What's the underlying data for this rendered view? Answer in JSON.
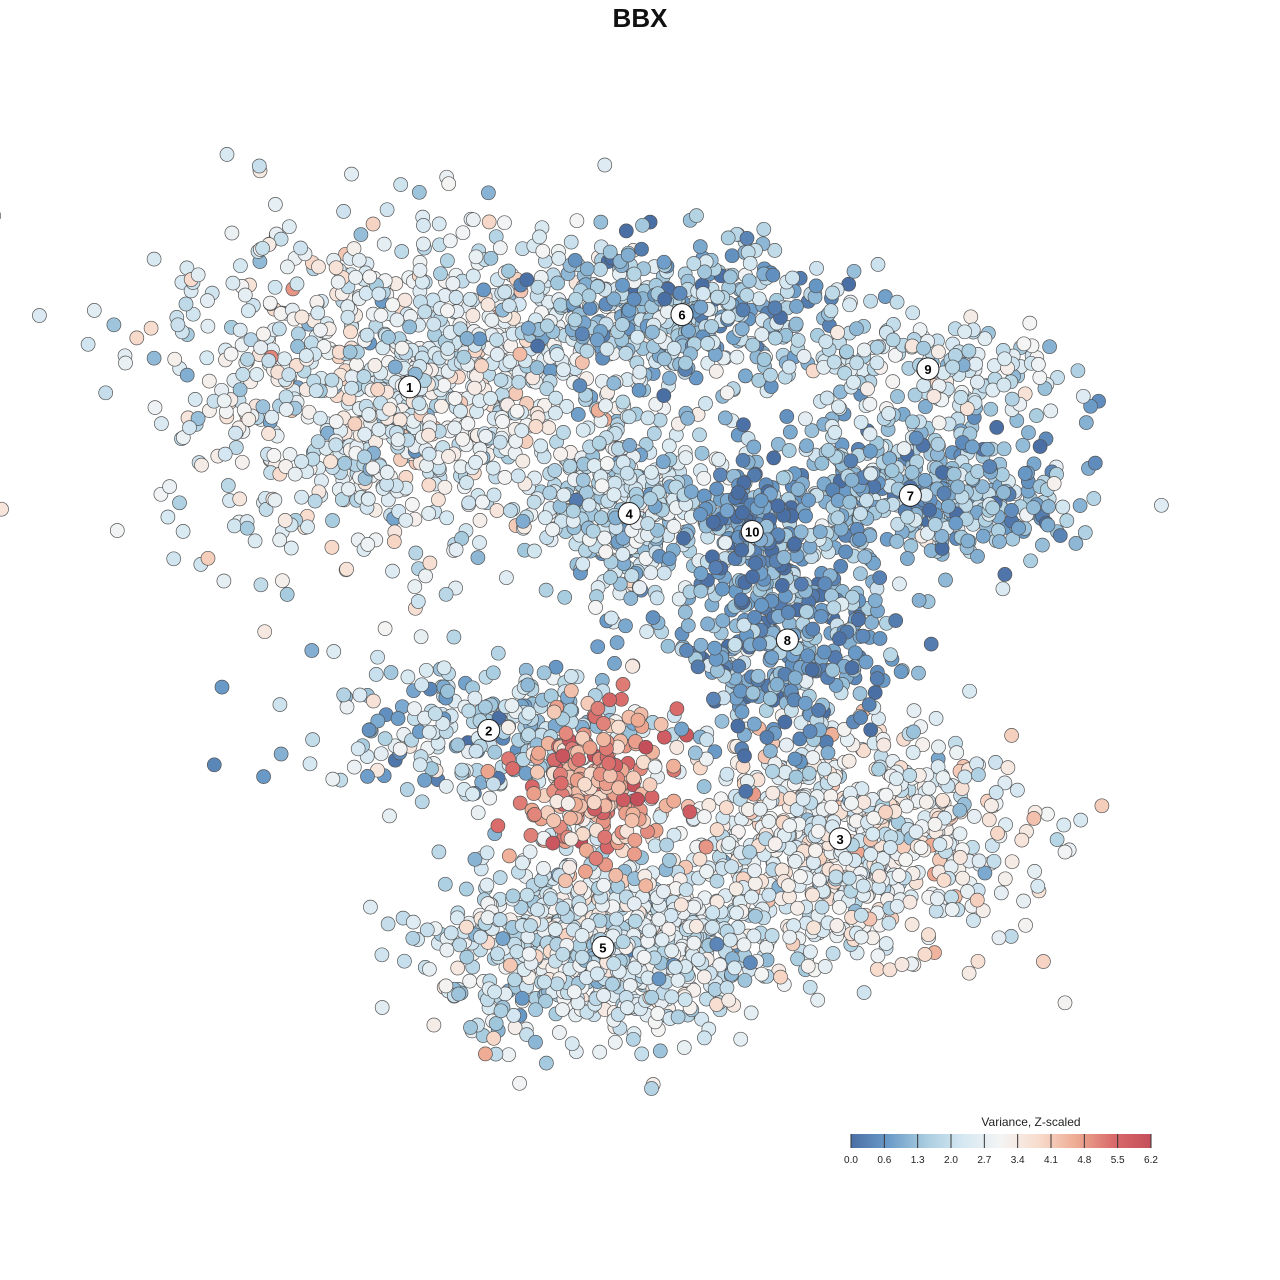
{
  "chart_data": {
    "type": "scatter",
    "title": "BBX",
    "xlabel": "",
    "ylabel": "",
    "grid": false,
    "axes_visible": false,
    "legend": {
      "title": "Variance, Z-scaled",
      "placement": "bottom-right",
      "ticks": [
        "0.0",
        "0.6",
        "1.3",
        "2.0",
        "2.7",
        "3.4",
        "4.1",
        "4.8",
        "5.5",
        "6.2"
      ],
      "range": [
        0.0,
        6.2
      ],
      "colors": [
        "#4a6fa5",
        "#6a9bc8",
        "#a9cde0",
        "#d6e8f2",
        "#f4f4f4",
        "#f8dccd",
        "#eeab93",
        "#d96a6a",
        "#c44e5a"
      ]
    },
    "clusters": [
      {
        "label": "1",
        "center": [
          -30,
          28
        ],
        "spread": [
          14,
          9
        ],
        "n": 1100,
        "mean": 2.6
      },
      {
        "label": "2",
        "center": [
          -21,
          -10
        ],
        "spread": [
          10,
          4
        ],
        "n": 260,
        "mean": 1.8
      },
      {
        "label": "3",
        "center": [
          19,
          -22
        ],
        "spread": [
          10,
          6
        ],
        "n": 750,
        "mean": 2.9
      },
      {
        "label": "4",
        "center": [
          -5,
          14
        ],
        "spread": [
          5,
          5
        ],
        "n": 330,
        "mean": 2.0
      },
      {
        "label": "5",
        "center": [
          -8,
          -34
        ],
        "spread": [
          9,
          5
        ],
        "n": 850,
        "mean": 2.4
      },
      {
        "label": "6",
        "center": [
          1,
          36
        ],
        "spread": [
          9,
          4
        ],
        "n": 420,
        "mean": 1.5
      },
      {
        "label": "7",
        "center": [
          27,
          16
        ],
        "spread": [
          10,
          4
        ],
        "n": 480,
        "mean": 1.3
      },
      {
        "label": "8",
        "center": [
          13,
          0
        ],
        "spread": [
          6,
          6
        ],
        "n": 380,
        "mean": 1.0
      },
      {
        "label": "9",
        "center": [
          29,
          30
        ],
        "spread": [
          8,
          3
        ],
        "n": 180,
        "mean": 2.2
      },
      {
        "label": "10",
        "center": [
          9,
          12
        ],
        "spread": [
          3,
          3
        ],
        "n": 90,
        "mean": 0.4
      }
    ],
    "hotspot": {
      "center": [
        -9,
        -16
      ],
      "spread": [
        4,
        4
      ],
      "n": 240,
      "mean": 4.6
    },
    "xlim": [
      -55,
      52
    ],
    "ylim": [
      -52,
      52
    ]
  }
}
